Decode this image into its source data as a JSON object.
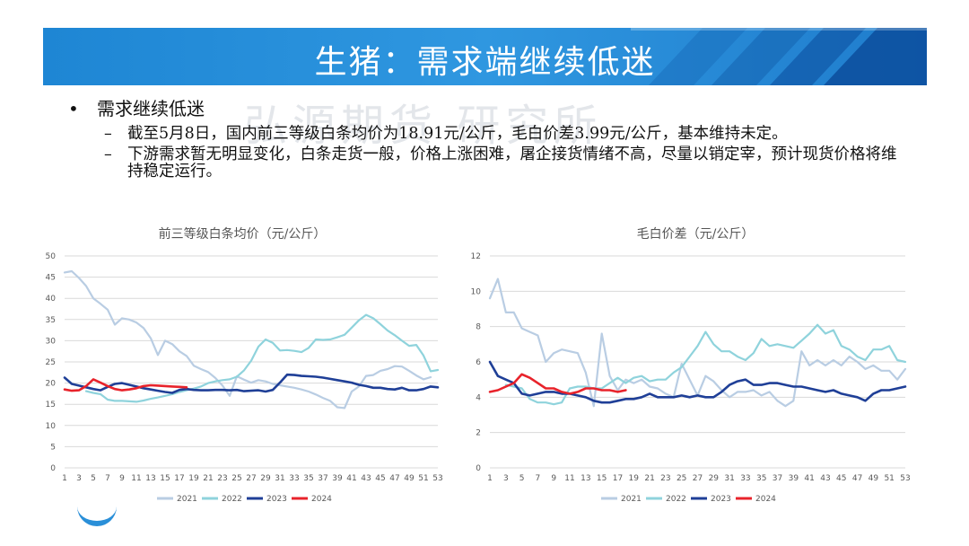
{
  "header": {
    "title": "生猪：需求端继续低迷"
  },
  "watermark": "弘源期货 研究所",
  "bullet": {
    "heading": "需求继续低迷",
    "items": [
      "截至5月8日，国内前三等级白条均价为18.91元/公斤，毛白价差3.99元/公斤，基本维持未定。",
      "下游需求暂无明显变化，白条走货一般，价格上涨困难，屠企接货情绪不高，尽量以销定宰，预计现货价格将维持稳定运行。"
    ]
  },
  "colors": {
    "2021": "#b9cde3",
    "2022": "#8fd3dc",
    "2023": "#1f3f97",
    "2024": "#e8232b",
    "banner": "#2a8fd8"
  },
  "chart_data": [
    {
      "type": "line",
      "title": "前三等级白条均价（元/公斤）",
      "x": [
        1,
        2,
        3,
        4,
        5,
        6,
        7,
        8,
        9,
        10,
        11,
        12,
        13,
        14,
        15,
        16,
        17,
        18,
        19,
        20,
        21,
        22,
        23,
        24,
        25,
        26,
        27,
        28,
        29,
        30,
        31,
        32,
        33,
        34,
        35,
        36,
        37,
        38,
        39,
        40,
        41,
        42,
        43,
        44,
        45,
        46,
        47,
        48,
        49,
        50,
        51,
        52,
        53
      ],
      "x_ticks": [
        1,
        3,
        5,
        7,
        9,
        11,
        13,
        15,
        17,
        19,
        21,
        23,
        25,
        27,
        29,
        31,
        33,
        35,
        37,
        39,
        41,
        43,
        45,
        47,
        49,
        51,
        53
      ],
      "ylim": [
        0,
        50
      ],
      "y_ticks": [
        0,
        5,
        10,
        15,
        20,
        25,
        30,
        35,
        40,
        45,
        50
      ],
      "legend_position": "bottom",
      "grid": true,
      "series": [
        {
          "name": "2021",
          "values": [
            46.1,
            46.4,
            44.8,
            42.9,
            40.0,
            38.7,
            37.3,
            33.8,
            35.3,
            35.0,
            34.3,
            33.0,
            30.6,
            26.6,
            30.0,
            29.2,
            27.5,
            26.4,
            24.1,
            23.3,
            22.6,
            21.2,
            19.4,
            17.0,
            21.6,
            20.8,
            20.1,
            20.7,
            20.4,
            19.8,
            19.5,
            19.2,
            18.9,
            18.5,
            18.0,
            17.3,
            16.5,
            15.8,
            14.3,
            14.1,
            18.0,
            19.2,
            21.7,
            21.9,
            22.9,
            23.3,
            24.0,
            23.9,
            22.9,
            21.8,
            20.9,
            21.4,
            null
          ]
        },
        {
          "name": "2022",
          "values": [
            null,
            null,
            null,
            18.1,
            17.7,
            17.4,
            16.1,
            15.8,
            15.8,
            15.7,
            15.6,
            15.9,
            16.3,
            16.6,
            17.0,
            17.4,
            17.9,
            18.3,
            18.7,
            19.2,
            20.0,
            20.4,
            20.7,
            20.9,
            21.5,
            23.0,
            25.3,
            28.6,
            30.3,
            29.5,
            27.7,
            27.8,
            27.6,
            27.3,
            28.3,
            30.3,
            30.2,
            30.3,
            30.8,
            31.4,
            33.1,
            34.8,
            36.1,
            35.3,
            33.9,
            32.4,
            31.3,
            30.0,
            28.8,
            29.0,
            26.5,
            22.8,
            23.1
          ]
        },
        {
          "name": "2023",
          "values": [
            21.3,
            19.8,
            19.4,
            19.0,
            18.6,
            18.3,
            19.1,
            19.8,
            20.0,
            19.6,
            19.2,
            18.8,
            18.5,
            18.2,
            17.9,
            17.7,
            18.4,
            18.6,
            18.4,
            18.3,
            18.3,
            18.4,
            18.4,
            18.3,
            18.4,
            18.1,
            18.2,
            18.3,
            18.0,
            18.4,
            20.1,
            22.0,
            21.9,
            21.7,
            21.6,
            21.5,
            21.3,
            21.0,
            20.7,
            20.4,
            20.1,
            19.6,
            19.3,
            18.9,
            18.9,
            18.6,
            18.5,
            18.9,
            18.3,
            18.3,
            18.6,
            19.2,
            19.0
          ]
        },
        {
          "name": "2024",
          "values": [
            18.5,
            18.2,
            18.3,
            19.3,
            20.9,
            20.1,
            19.3,
            18.6,
            18.3,
            18.5,
            18.8,
            19.3,
            19.5,
            19.4,
            19.3,
            19.2,
            19.1,
            19.0,
            null,
            null,
            null,
            null,
            null,
            null,
            null,
            null,
            null,
            null,
            null,
            null,
            null,
            null,
            null,
            null,
            null,
            null,
            null,
            null,
            null,
            null,
            null,
            null,
            null,
            null,
            null,
            null,
            null,
            null,
            null,
            null,
            null,
            null,
            null
          ]
        }
      ]
    },
    {
      "type": "line",
      "title": "毛白价差（元/公斤）",
      "x": [
        1,
        2,
        3,
        4,
        5,
        6,
        7,
        8,
        9,
        10,
        11,
        12,
        13,
        14,
        15,
        16,
        17,
        18,
        19,
        20,
        21,
        22,
        23,
        24,
        25,
        26,
        27,
        28,
        29,
        30,
        31,
        32,
        33,
        34,
        35,
        36,
        37,
        38,
        39,
        40,
        41,
        42,
        43,
        44,
        45,
        46,
        47,
        48,
        49,
        50,
        51,
        52,
        53
      ],
      "x_ticks": [
        1,
        3,
        5,
        7,
        9,
        11,
        13,
        15,
        17,
        19,
        21,
        23,
        25,
        27,
        29,
        31,
        33,
        35,
        37,
        39,
        41,
        43,
        45,
        47,
        49,
        51,
        53
      ],
      "ylim": [
        0,
        12
      ],
      "y_ticks": [
        0,
        2,
        4,
        6,
        8,
        10,
        12
      ],
      "legend_position": "bottom",
      "grid": true,
      "series": [
        {
          "name": "2021",
          "values": [
            9.6,
            10.7,
            8.8,
            8.8,
            7.9,
            7.7,
            7.5,
            6.0,
            6.5,
            6.7,
            6.6,
            6.5,
            5.4,
            3.5,
            7.6,
            5.2,
            4.4,
            5.0,
            4.8,
            5.0,
            4.6,
            4.5,
            4.2,
            4.0,
            5.9,
            5.0,
            4.1,
            5.2,
            4.9,
            4.4,
            4.0,
            4.3,
            4.3,
            4.4,
            4.1,
            4.3,
            3.8,
            3.5,
            3.8,
            6.6,
            5.8,
            6.1,
            5.8,
            6.1,
            5.8,
            6.3,
            6.0,
            5.6,
            5.8,
            5.5,
            5.5,
            5.0,
            5.6
          ]
        },
        {
          "name": "2022",
          "values": [
            null,
            null,
            4.7,
            4.6,
            4.5,
            3.9,
            3.7,
            3.7,
            3.6,
            3.7,
            4.5,
            4.6,
            4.6,
            4.5,
            4.5,
            4.8,
            5.1,
            4.8,
            5.1,
            5.2,
            4.9,
            5.0,
            5.0,
            5.4,
            5.7,
            6.3,
            6.9,
            7.7,
            7.0,
            6.6,
            6.6,
            6.3,
            6.1,
            6.5,
            7.3,
            6.9,
            7.0,
            6.9,
            6.8,
            7.2,
            7.6,
            8.1,
            7.6,
            7.8,
            6.9,
            6.7,
            6.3,
            6.1,
            6.7,
            6.7,
            6.9,
            6.1,
            6.0
          ]
        },
        {
          "name": "2023",
          "values": [
            6.0,
            5.2,
            5.0,
            4.8,
            4.2,
            4.1,
            4.2,
            4.3,
            4.3,
            4.2,
            4.2,
            4.1,
            4.0,
            3.8,
            3.7,
            3.7,
            3.8,
            3.9,
            3.9,
            4.0,
            4.2,
            4.0,
            4.0,
            4.0,
            4.1,
            4.0,
            4.1,
            4.0,
            4.0,
            4.3,
            4.7,
            4.9,
            5.0,
            4.7,
            4.7,
            4.8,
            4.8,
            4.7,
            4.6,
            4.6,
            4.5,
            4.4,
            4.3,
            4.4,
            4.2,
            4.1,
            4.0,
            3.8,
            4.2,
            4.4,
            4.4,
            4.5,
            4.6
          ]
        },
        {
          "name": "2024",
          "values": [
            4.3,
            4.4,
            4.6,
            4.8,
            5.3,
            5.1,
            4.8,
            4.5,
            4.5,
            4.3,
            4.2,
            4.3,
            4.5,
            4.5,
            4.4,
            4.4,
            4.3,
            4.4,
            null,
            null,
            null,
            null,
            null,
            null,
            null,
            null,
            null,
            null,
            null,
            null,
            null,
            null,
            null,
            null,
            null,
            null,
            null,
            null,
            null,
            null,
            null,
            null,
            null,
            null,
            null,
            null,
            null,
            null,
            null,
            null,
            null,
            null,
            null
          ]
        }
      ]
    }
  ]
}
